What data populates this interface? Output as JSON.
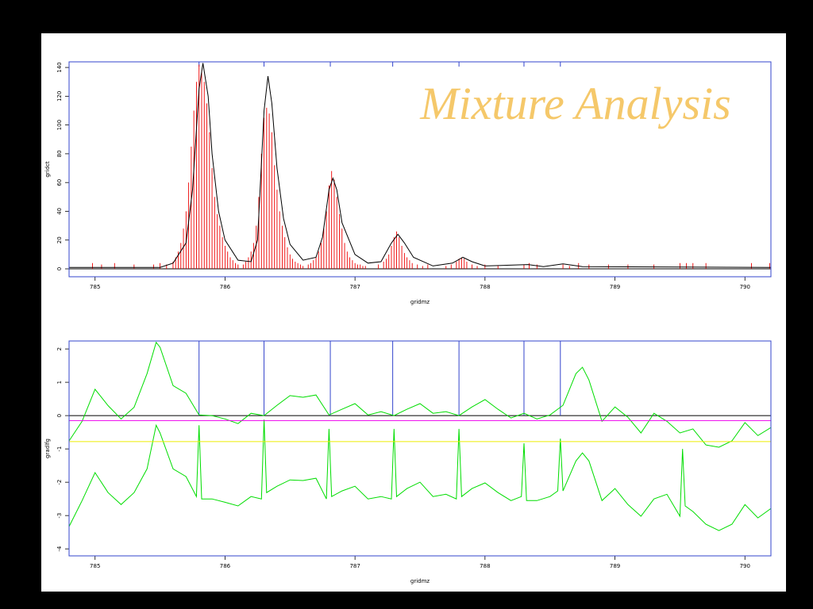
{
  "title": "Mixture Analysis",
  "chart_data": [
    {
      "type": "spectrum",
      "xlabel": "gridmz",
      "ylabel": "gridct",
      "xlim": [
        784.8,
        790.2
      ],
      "xticks": [
        785,
        786,
        787,
        788,
        789,
        790
      ],
      "ylim": [
        -5.5,
        143.9
      ],
      "yticks": [
        0,
        20,
        40,
        60,
        80,
        100,
        120,
        140
      ],
      "hlines": [
        0
      ],
      "hline_color": "#000000",
      "vlines": [
        785.8,
        786.3,
        786.81,
        787.29,
        787.8,
        788.3,
        788.58
      ],
      "vline_color": "#3344cc",
      "vline_style": "tick",
      "series": [
        {
          "style": "stick",
          "color": "#ee0000",
          "x": [
            784.98,
            785.05,
            785.15,
            785.3,
            785.45,
            785.5,
            785.55,
            785.6,
            785.62,
            785.64,
            785.66,
            785.68,
            785.7,
            785.72,
            785.74,
            785.76,
            785.78,
            785.8,
            785.82,
            785.84,
            785.86,
            785.88,
            785.9,
            785.92,
            785.94,
            785.96,
            785.98,
            786.0,
            786.02,
            786.04,
            786.06,
            786.08,
            786.1,
            786.14,
            786.16,
            786.18,
            786.2,
            786.22,
            786.24,
            786.26,
            786.28,
            786.3,
            786.32,
            786.34,
            786.36,
            786.38,
            786.4,
            786.42,
            786.44,
            786.46,
            786.48,
            786.5,
            786.52,
            786.54,
            786.56,
            786.58,
            786.6,
            786.64,
            786.66,
            786.68,
            786.7,
            786.72,
            786.74,
            786.76,
            786.78,
            786.8,
            786.82,
            786.84,
            786.86,
            786.88,
            786.9,
            786.92,
            786.94,
            786.96,
            786.98,
            787.0,
            787.02,
            787.04,
            787.06,
            787.08,
            787.18,
            787.22,
            787.24,
            787.26,
            787.28,
            787.3,
            787.32,
            787.34,
            787.36,
            787.38,
            787.4,
            787.42,
            787.44,
            787.48,
            787.52,
            787.56,
            787.7,
            787.74,
            787.78,
            787.8,
            787.82,
            787.84,
            787.86,
            787.9,
            787.94,
            788.0,
            788.1,
            788.3,
            788.34,
            788.4,
            788.6,
            788.65,
            788.72,
            788.8,
            788.95,
            789.1,
            789.3,
            789.5,
            789.55,
            789.6,
            789.7,
            790.05,
            790.19
          ],
          "values": [
            4,
            3,
            4,
            3,
            3,
            4,
            3,
            5,
            8,
            12,
            18,
            28,
            40,
            60,
            85,
            110,
            130,
            142,
            138,
            130,
            115,
            95,
            70,
            50,
            38,
            30,
            22,
            16,
            12,
            8,
            6,
            4,
            3,
            3,
            5,
            8,
            12,
            18,
            30,
            50,
            80,
            105,
            112,
            108,
            95,
            72,
            55,
            40,
            30,
            22,
            15,
            10,
            7,
            5,
            4,
            3,
            2,
            3,
            4,
            6,
            8,
            12,
            18,
            28,
            40,
            58,
            68,
            62,
            50,
            38,
            28,
            18,
            12,
            8,
            6,
            4,
            3,
            3,
            2,
            2,
            3,
            5,
            7,
            10,
            16,
            22,
            26,
            22,
            16,
            11,
            8,
            6,
            4,
            3,
            2,
            3,
            2,
            3,
            5,
            7,
            8,
            7,
            5,
            3,
            2,
            3,
            2,
            3,
            4,
            3,
            3,
            2,
            4,
            3,
            3,
            3,
            3,
            4,
            4,
            4,
            4,
            4,
            4
          ]
        },
        {
          "style": "line",
          "color": "#000000",
          "x": [
            784.8,
            785.5,
            785.6,
            785.7,
            785.75,
            785.8,
            785.83,
            785.87,
            785.9,
            785.95,
            786.0,
            786.1,
            786.2,
            786.25,
            786.3,
            786.33,
            786.36,
            786.4,
            786.45,
            786.5,
            786.6,
            786.7,
            786.75,
            786.8,
            786.83,
            786.86,
            786.9,
            787.0,
            787.1,
            787.2,
            787.28,
            787.33,
            787.38,
            787.45,
            787.6,
            787.75,
            787.83,
            787.9,
            788.0,
            788.33,
            788.45,
            788.6,
            788.75,
            790.2
          ],
          "values": [
            1,
            1,
            4,
            18,
            55,
            125,
            143,
            120,
            80,
            40,
            20,
            6,
            5,
            20,
            110,
            134,
            115,
            70,
            35,
            17,
            6,
            8,
            22,
            55,
            63,
            55,
            32,
            10,
            4,
            5,
            18,
            24,
            18,
            8,
            2,
            4,
            8,
            5,
            2,
            3,
            1.5,
            3.5,
            1.5,
            1
          ]
        }
      ]
    },
    {
      "type": "line",
      "xlabel": "gridmz",
      "ylabel": "gradlfg",
      "xlim": [
        784.8,
        790.2
      ],
      "xticks": [
        785,
        786,
        787,
        788,
        789,
        790
      ],
      "ylim": [
        -4.21,
        2.24
      ],
      "yticks": [
        -4,
        -3,
        -2,
        -1,
        0,
        1,
        2
      ],
      "hlines": [
        0
      ],
      "hline_color": "#000000",
      "vlines": [
        785.8,
        786.3,
        786.81,
        787.29,
        787.8,
        788.3,
        788.58
      ],
      "vline_color": "#3344cc",
      "vline_style": "full",
      "series": [
        {
          "style": "line",
          "color": "#00dd00",
          "x": [
            784.8,
            784.9,
            785.0,
            785.1,
            785.2,
            785.3,
            785.4,
            785.47,
            785.5,
            785.6,
            785.7,
            785.8,
            785.9,
            786.0,
            786.1,
            786.2,
            786.3,
            786.4,
            786.5,
            786.6,
            786.7,
            786.8,
            786.9,
            787.0,
            787.1,
            787.2,
            787.3,
            787.4,
            787.5,
            787.6,
            787.7,
            787.8,
            787.9,
            788.0,
            788.1,
            788.2,
            788.3,
            788.4,
            788.5,
            788.6,
            788.7,
            788.75,
            788.8,
            788.9,
            789.0,
            789.1,
            789.2,
            789.3,
            789.4,
            789.5,
            789.6,
            789.7,
            789.8,
            789.9,
            790.0,
            790.1,
            790.2
          ],
          "values": [
            -0.76,
            -0.17,
            0.79,
            0.3,
            -0.1,
            0.25,
            1.26,
            2.2,
            2.05,
            0.9,
            0.67,
            0.02,
            0,
            -0.1,
            -0.24,
            0.07,
            0,
            0.31,
            0.6,
            0.55,
            0.62,
            0.02,
            0.19,
            0.36,
            0.02,
            0.12,
            0,
            0.19,
            0.36,
            0.07,
            0.12,
            0,
            0.26,
            0.48,
            0.19,
            -0.07,
            0.07,
            -0.1,
            0.02,
            0.31,
            1.26,
            1.45,
            1.07,
            -0.17,
            0.26,
            -0.05,
            -0.52,
            0.07,
            -0.17,
            -0.52,
            -0.4,
            -0.88,
            -0.95,
            -0.76,
            -0.21,
            -0.6,
            -0.36
          ]
        },
        {
          "style": "line",
          "color": "#00dd00",
          "x": [
            784.8,
            784.9,
            785.0,
            785.1,
            785.2,
            785.3,
            785.4,
            785.47,
            785.5,
            785.6,
            785.7,
            785.78,
            785.8,
            785.82,
            785.9,
            786.0,
            786.1,
            786.2,
            786.28,
            786.3,
            786.32,
            786.4,
            786.5,
            786.6,
            786.7,
            786.78,
            786.8,
            786.82,
            786.9,
            787.0,
            787.1,
            787.2,
            787.28,
            787.3,
            787.32,
            787.4,
            787.5,
            787.6,
            787.7,
            787.78,
            787.8,
            787.82,
            787.9,
            788.0,
            788.1,
            788.2,
            788.28,
            788.3,
            788.32,
            788.4,
            788.5,
            788.56,
            788.58,
            788.6,
            788.7,
            788.75,
            788.8,
            788.9,
            789.0,
            789.1,
            789.2,
            789.3,
            789.4,
            789.5,
            789.52,
            789.54,
            789.6,
            789.7,
            789.8,
            789.9,
            790.0,
            790.1,
            790.2
          ],
          "values": [
            -3.33,
            -2.55,
            -1.71,
            -2.31,
            -2.67,
            -2.31,
            -1.6,
            -0.29,
            -0.52,
            -1.6,
            -1.83,
            -2.43,
            -0.29,
            -2.5,
            -2.5,
            -2.6,
            -2.71,
            -2.43,
            -2.5,
            -0.12,
            -2.31,
            -2.12,
            -1.93,
            -1.95,
            -1.88,
            -2.5,
            -0.4,
            -2.43,
            -2.26,
            -2.12,
            -2.5,
            -2.43,
            -2.5,
            -0.4,
            -2.43,
            -2.19,
            -2,
            -2.43,
            -2.36,
            -2.5,
            -0.4,
            -2.43,
            -2.19,
            -2.02,
            -2.31,
            -2.55,
            -2.43,
            -0.83,
            -2.55,
            -2.55,
            -2.43,
            -2.26,
            -0.69,
            -2.26,
            -1.36,
            -1.12,
            -1.36,
            -2.55,
            -2.19,
            -2.67,
            -3.02,
            -2.5,
            -2.36,
            -3.02,
            -1,
            -2.71,
            -2.88,
            -3.26,
            -3.45,
            -3.26,
            -2.67,
            -3.07,
            -2.79
          ]
        },
        {
          "style": "line",
          "color": "#ee00ee",
          "x": [
            784.8,
            790.2
          ],
          "values": [
            -0.15,
            -0.15
          ]
        },
        {
          "style": "line",
          "color": "#eeee00",
          "x": [
            784.8,
            790.2
          ],
          "values": [
            -0.78,
            -0.78
          ]
        }
      ]
    }
  ]
}
